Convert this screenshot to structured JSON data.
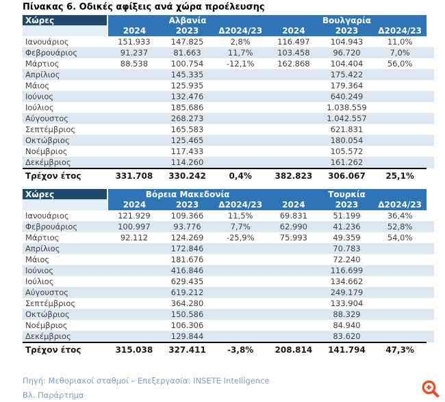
{
  "title": "Πίνακας 6. Οδικές αφίξεις ανά χώρα προέλευσης",
  "colors": {
    "header_dark_navy": "#1F4A6E",
    "header_blue": "#2E75B6",
    "row_stripe_blue": "#DBE8F4",
    "header_blank_cell": "#E3EEF8",
    "body_text": "#404040",
    "total_border": "#000000",
    "footer_text": "#7E9EC4",
    "zoom_icon_orange": "#EE4E23"
  },
  "tables": [
    {
      "corner_label": "Χώρες",
      "groups": [
        "Αλβανία",
        "Βουλγαρία"
      ],
      "year_headers": [
        "2024",
        "2023",
        "Δ2024/23",
        "2024",
        "2023",
        "Δ2024/23"
      ],
      "rows": [
        {
          "label": "Ιανουάριος",
          "cells": [
            "151.933",
            "147.825",
            "2,8%",
            "116.497",
            "104.943",
            "11,0%"
          ]
        },
        {
          "label": "Φεβρουάριος",
          "cells": [
            "91.237",
            "81.663",
            "11,7%",
            "103.458",
            "96.720",
            "7,0%"
          ]
        },
        {
          "label": "Μάρτιος",
          "cells": [
            "88.538",
            "100.754",
            "-12,1%",
            "162.868",
            "104.404",
            "56,0%"
          ]
        },
        {
          "label": "Απρίλιος",
          "cells": [
            "",
            "145.335",
            "",
            "",
            "175.422",
            ""
          ]
        },
        {
          "label": "Μάιος",
          "cells": [
            "",
            "125.935",
            "",
            "",
            "179.364",
            ""
          ]
        },
        {
          "label": "Ιούνιος",
          "cells": [
            "",
            "132.476",
            "",
            "",
            "640.249",
            ""
          ]
        },
        {
          "label": "Ιούλιος",
          "cells": [
            "",
            "185.686",
            "",
            "",
            "1.038.559",
            ""
          ]
        },
        {
          "label": "Αύγουστος",
          "cells": [
            "",
            "268.273",
            "",
            "",
            "1.042.557",
            ""
          ]
        },
        {
          "label": "Σεπτέμβριος",
          "cells": [
            "",
            "165.583",
            "",
            "",
            "621.831",
            ""
          ]
        },
        {
          "label": "Οκτώβριος",
          "cells": [
            "",
            "125.465",
            "",
            "",
            "180.054",
            ""
          ]
        },
        {
          "label": "Νοέμβριος",
          "cells": [
            "",
            "117.433",
            "",
            "",
            "105.572",
            ""
          ]
        },
        {
          "label": "Δεκέμβριος",
          "cells": [
            "",
            "114.260",
            "",
            "",
            "161.262",
            ""
          ]
        }
      ],
      "total": {
        "label": "Τρέχον έτος",
        "cells": [
          "331.708",
          "330.242",
          "0,4%",
          "382.823",
          "306.067",
          "25,1%"
        ]
      }
    },
    {
      "corner_label": "Χώρες",
      "groups": [
        "Βόρεια Μακεδονία",
        "Τουρκία"
      ],
      "year_headers": [
        "2024",
        "2023",
        "Δ2024/23",
        "2024",
        "2023",
        "Δ2024/23"
      ],
      "rows": [
        {
          "label": "Ιανουάριος",
          "cells": [
            "121.929",
            "109.366",
            "11,5%",
            "69.831",
            "51.199",
            "36,4%"
          ]
        },
        {
          "label": "Φεβρουάριος",
          "cells": [
            "100.997",
            "93.776",
            "7,7%",
            "62.990",
            "41.236",
            "52,8%"
          ]
        },
        {
          "label": "Μάρτιος",
          "cells": [
            "92.112",
            "124.269",
            "-25,9%",
            "75.993",
            "49.359",
            "54,0%"
          ]
        },
        {
          "label": "Απρίλιος",
          "cells": [
            "",
            "172.846",
            "",
            "",
            "70.783",
            ""
          ]
        },
        {
          "label": "Μάιος",
          "cells": [
            "",
            "181.676",
            "",
            "",
            "72.240",
            ""
          ]
        },
        {
          "label": "Ιούνιος",
          "cells": [
            "",
            "416.846",
            "",
            "",
            "116.699",
            ""
          ]
        },
        {
          "label": "Ιούλιος",
          "cells": [
            "",
            "629.435",
            "",
            "",
            "134.662",
            ""
          ]
        },
        {
          "label": "Αύγουστος",
          "cells": [
            "",
            "619.212",
            "",
            "",
            "249.179",
            ""
          ]
        },
        {
          "label": "Σεπτέμβριος",
          "cells": [
            "",
            "364.280",
            "",
            "",
            "133.904",
            ""
          ]
        },
        {
          "label": "Οκτώβριος",
          "cells": [
            "",
            "150.586",
            "",
            "",
            "88.329",
            ""
          ]
        },
        {
          "label": "Νοέμβριος",
          "cells": [
            "",
            "106.306",
            "",
            "",
            "84.940",
            ""
          ]
        },
        {
          "label": "Δεκέμβριος",
          "cells": [
            "",
            "129.844",
            "",
            "",
            "83.620",
            ""
          ]
        }
      ],
      "total": {
        "label": "Τρέχον έτος",
        "cells": [
          "315.038",
          "327.411",
          "-3,8%",
          "208.814",
          "141.794",
          "47,3%"
        ]
      }
    }
  ],
  "footer": {
    "source": "Πηγή: Μεθοριακοί σταθμοί – Επεξεργασία: INSETE Intelligence",
    "appendix": "Βλ. Παράρτημα"
  },
  "icons": {
    "zoom": "zoom-in-icon"
  }
}
